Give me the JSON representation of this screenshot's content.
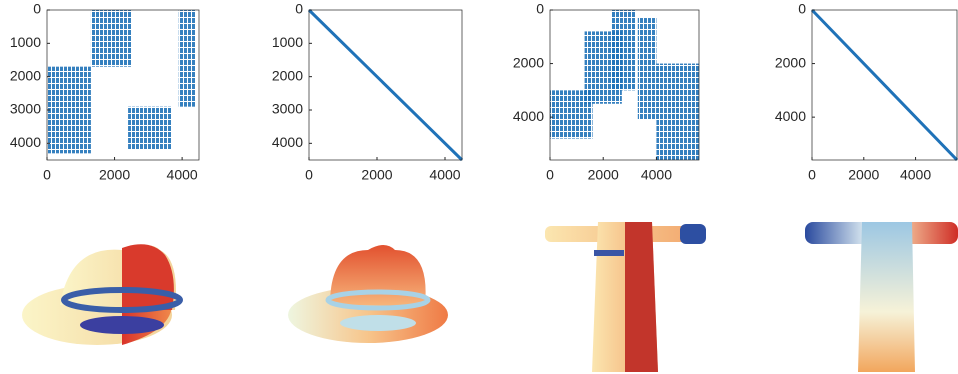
{
  "chart_data": [
    {
      "type": "spy",
      "color": "#1f72b8",
      "xlim": [
        0,
        4500
      ],
      "ylim": [
        0,
        4500
      ],
      "xticks": [
        0,
        2000,
        4000
      ],
      "yticks": [
        0,
        1000,
        2000,
        3000,
        4000
      ],
      "blocks": [
        {
          "x": [
            0,
            1300
          ],
          "y": [
            1700,
            4300
          ]
        },
        {
          "x": [
            1300,
            2500
          ],
          "y": [
            0,
            1700
          ]
        },
        {
          "x": [
            2400,
            3700
          ],
          "y": [
            2900,
            4200
          ]
        },
        {
          "x": [
            3900,
            4400
          ],
          "y": [
            0,
            2900
          ]
        }
      ],
      "lines": []
    },
    {
      "type": "spy",
      "color": "#1f72b8",
      "xlim": [
        0,
        4500
      ],
      "ylim": [
        0,
        4500
      ],
      "xticks": [
        0,
        2000,
        4000
      ],
      "yticks": [
        0,
        1000,
        2000,
        3000,
        4000
      ],
      "blocks": [],
      "lines": [
        {
          "x": [
            0,
            4500
          ],
          "y": [
            0,
            4500
          ]
        }
      ]
    },
    {
      "type": "spy",
      "color": "#1f72b8",
      "xlim": [
        0,
        5600
      ],
      "ylim": [
        0,
        5600
      ],
      "xticks": [
        0,
        2000,
        4000
      ],
      "yticks": [
        0,
        2000,
        4000
      ],
      "blocks": [
        {
          "x": [
            0,
            1600
          ],
          "y": [
            3000,
            4800
          ]
        },
        {
          "x": [
            1300,
            2700
          ],
          "y": [
            800,
            3500
          ]
        },
        {
          "x": [
            2300,
            3200
          ],
          "y": [
            0,
            3000
          ]
        },
        {
          "x": [
            3300,
            4000
          ],
          "y": [
            300,
            4100
          ]
        },
        {
          "x": [
            4000,
            5600
          ],
          "y": [
            2000,
            5600
          ]
        }
      ],
      "lines": []
    },
    {
      "type": "spy",
      "color": "#1f72b8",
      "xlim": [
        0,
        5600
      ],
      "ylim": [
        0,
        5600
      ],
      "xticks": [
        0,
        2000,
        4000
      ],
      "yticks": [
        0,
        2000,
        4000
      ],
      "blocks": [],
      "lines": [
        {
          "x": [
            0,
            5600
          ],
          "y": [
            0,
            5600
          ]
        }
      ]
    }
  ]
}
